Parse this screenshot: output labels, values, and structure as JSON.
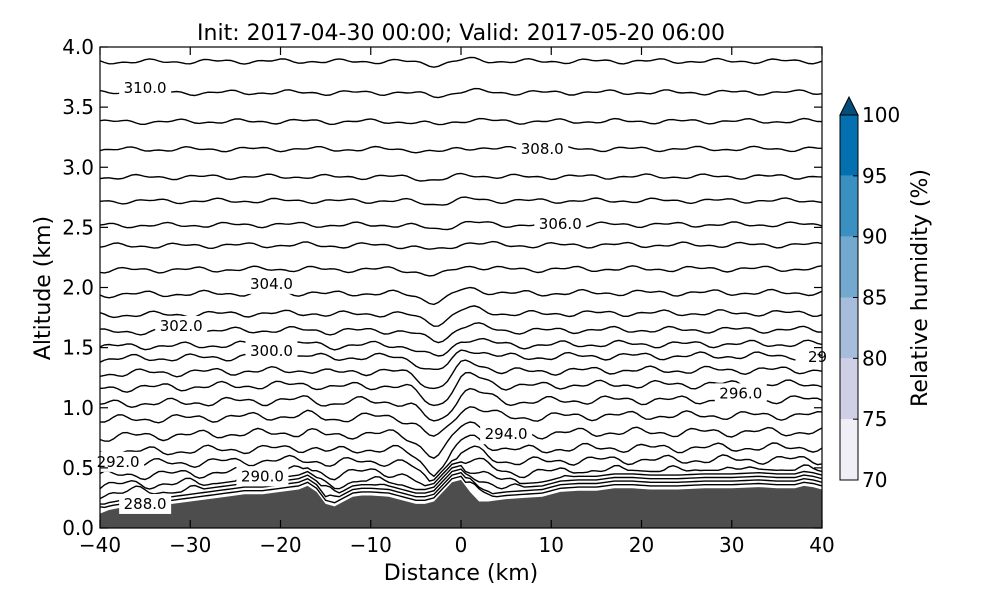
{
  "chart_data": {
    "type": "contour",
    "title": "Init: 2017-04-30 00:00; Valid: 2017-05-20 06:00",
    "xlabel": "Distance (km)",
    "ylabel": "Altitude (km)",
    "xlim": [
      -40,
      40
    ],
    "ylim": [
      0.0,
      4.0
    ],
    "xticks": [
      "−40",
      "−30",
      "−20",
      "−10",
      "0",
      "10",
      "20",
      "30",
      "40"
    ],
    "yticks": [
      "0.0",
      "0.5",
      "1.0",
      "1.5",
      "2.0",
      "2.5",
      "3.0",
      "3.5",
      "4.0"
    ],
    "colorbar": {
      "label": "Relative humidity (%)",
      "ticks": [
        "70",
        "75",
        "80",
        "85",
        "90",
        "95",
        "100"
      ],
      "levels": [
        70,
        75,
        80,
        85,
        90,
        95,
        100
      ],
      "colors": [
        "#f0eef6",
        "#cfd0e6",
        "#a6bddb",
        "#74a9cf",
        "#3a90c0",
        "#0570b0",
        "#034e7b"
      ],
      "extend": "max"
    },
    "terrain": {
      "color": "#4d4d4d",
      "x": [
        -40,
        -39,
        -37,
        -35,
        -32,
        -30,
        -28,
        -26,
        -24,
        -22,
        -20,
        -18,
        -17,
        -16,
        -15,
        -14,
        -13,
        -12,
        -11,
        -10,
        -8,
        -6,
        -5,
        -4,
        -3,
        -2,
        -1,
        0,
        1,
        2,
        3,
        5,
        7,
        9,
        11,
        13,
        15,
        17,
        19,
        21,
        24,
        27,
        30,
        33,
        35,
        37,
        38,
        39,
        40
      ],
      "y": [
        0.12,
        0.15,
        0.18,
        0.19,
        0.2,
        0.22,
        0.24,
        0.26,
        0.28,
        0.28,
        0.3,
        0.32,
        0.35,
        0.3,
        0.2,
        0.18,
        0.22,
        0.26,
        0.27,
        0.27,
        0.26,
        0.22,
        0.2,
        0.2,
        0.22,
        0.3,
        0.38,
        0.4,
        0.3,
        0.22,
        0.22,
        0.24,
        0.25,
        0.26,
        0.3,
        0.31,
        0.31,
        0.33,
        0.33,
        0.32,
        0.32,
        0.33,
        0.33,
        0.34,
        0.33,
        0.33,
        0.35,
        0.34,
        0.32
      ]
    },
    "contours": [
      {
        "level": "288.0",
        "base": 0.2,
        "amp": 0.3,
        "label_x": -35,
        "label_y": 0.2
      },
      {
        "level": "",
        "base": 0.25,
        "amp": 0.28
      },
      {
        "level": "",
        "base": 0.32,
        "amp": 0.27,
        "label_x": -14,
        "label_y": 0.33
      },
      {
        "level": "290.0",
        "base": 0.38,
        "amp": 0.25,
        "label_x": -22,
        "label_y": 0.43
      },
      {
        "level": "",
        "base": 0.46,
        "amp": 0.24
      },
      {
        "level": "292.0",
        "base": 0.55,
        "amp": 0.22,
        "label_x": -38,
        "label_y": 0.55
      },
      {
        "level": "",
        "base": 0.65,
        "amp": 0.22
      },
      {
        "level": "",
        "base": 0.78,
        "amp": 0.22
      },
      {
        "level": "294.0",
        "base": 0.92,
        "amp": 0.2,
        "label_x": 5,
        "label_y": 0.78
      },
      {
        "level": "",
        "base": 1.05,
        "amp": 0.2
      },
      {
        "level": "296.0",
        "base": 1.18,
        "amp": 0.18,
        "label_x": 31,
        "label_y": 1.12
      },
      {
        "level": "",
        "base": 1.3,
        "amp": 0.16
      },
      {
        "level": "",
        "base": 1.42,
        "amp": 0.14
      },
      {
        "level": "300.0",
        "base": 1.52,
        "amp": 0.12,
        "label_x": -21,
        "label_y": 1.47
      },
      {
        "level": "302.0",
        "base": 1.64,
        "amp": 0.1,
        "label_x": -31,
        "label_y": 1.68
      },
      {
        "level": "",
        "base": 1.78,
        "amp": 0.09
      },
      {
        "level": "304.0",
        "base": 1.95,
        "amp": 0.08,
        "label_x": -21,
        "label_y": 2.03
      },
      {
        "level": "",
        "base": 2.15,
        "amp": 0.06
      },
      {
        "level": "",
        "base": 2.35,
        "amp": 0.05
      },
      {
        "level": "306.0",
        "base": 2.52,
        "amp": 0.04,
        "label_x": 11,
        "label_y": 2.53
      },
      {
        "level": "",
        "base": 2.72,
        "amp": 0.03
      },
      {
        "level": "",
        "base": 2.92,
        "amp": 0.03
      },
      {
        "level": "308.0",
        "base": 3.15,
        "amp": 0.03,
        "label_x": 9,
        "label_y": 3.15
      },
      {
        "level": "",
        "base": 3.38,
        "amp": 0.03
      },
      {
        "level": "310.0",
        "base": 3.62,
        "amp": 0.03,
        "label_x": -35,
        "label_y": 3.66
      },
      {
        "level": "",
        "base": 3.88,
        "amp": 0.03
      }
    ],
    "edge_label": {
      "text": "29",
      "x": 39.5,
      "y": 1.42
    }
  }
}
